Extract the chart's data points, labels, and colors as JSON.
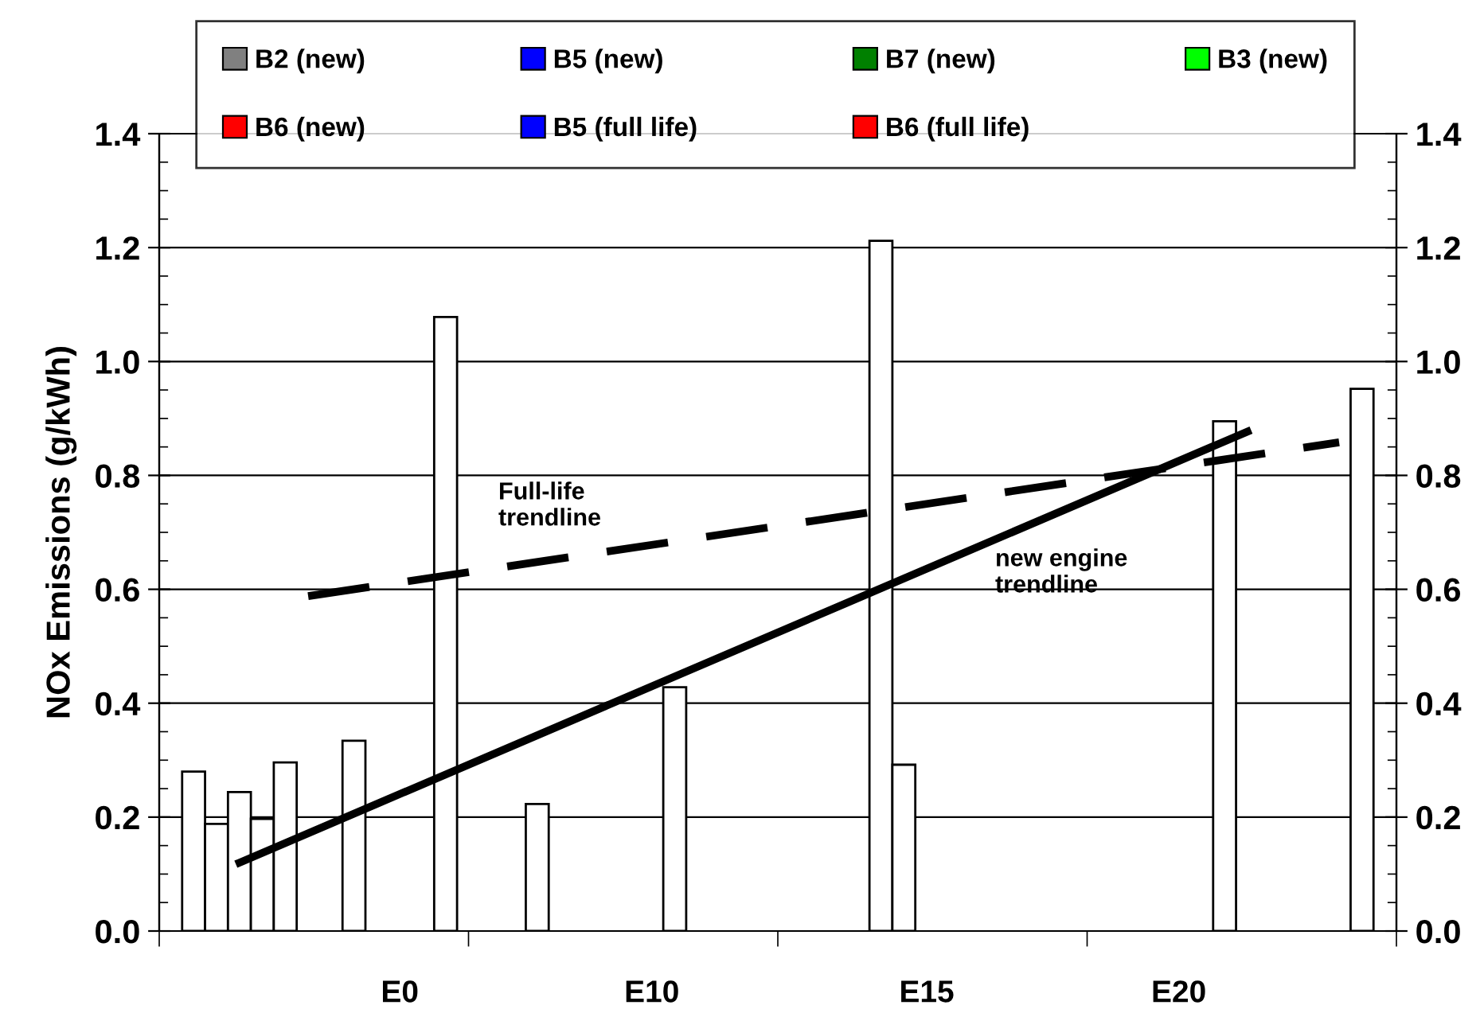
{
  "chart_data": {
    "type": "bar",
    "ylabel": "NOx Emissions (g/kWh)",
    "categories": [
      null,
      null,
      null,
      null,
      null,
      null,
      null,
      null,
      null,
      null,
      "E0",
      null,
      null,
      null,
      null,
      null,
      null,
      null,
      null,
      null,
      null,
      "E10",
      null,
      null,
      null,
      null,
      null,
      null,
      null,
      null,
      null,
      null,
      null,
      "E15",
      null,
      null,
      null,
      null,
      null,
      null,
      null,
      null,
      null,
      null,
      "E20",
      null,
      null,
      null,
      null,
      null,
      null,
      null,
      null,
      null
    ],
    "ylim": [
      0,
      1.4
    ],
    "yticks": [
      {
        "value": 0,
        "label": "0.0"
      },
      {
        "value": 0.2,
        "label": "0.2"
      },
      {
        "value": 0.4,
        "label": "0.4"
      },
      {
        "value": 0.6,
        "label": "0.6"
      },
      {
        "value": 0.8,
        "label": "0.8"
      },
      {
        "value": 1.0,
        "label": "1.0"
      },
      {
        "value": 1.2,
        "label": "1.2"
      },
      {
        "value": 1.4,
        "label": "1.4"
      }
    ],
    "y2lim": [
      0,
      1.4
    ],
    "y2ticks": [
      {
        "value": 0,
        "label": "0.0"
      },
      {
        "value": 0.2,
        "label": "0.2"
      },
      {
        "value": 0.4,
        "label": "0.4"
      },
      {
        "value": 0.6,
        "label": "0.6"
      },
      {
        "value": 0.8,
        "label": "0.8"
      },
      {
        "value": 1.0,
        "label": "1.0"
      },
      {
        "value": 1.2,
        "label": "1.2"
      },
      {
        "value": 1.4,
        "label": "1.4"
      }
    ],
    "grid": "y",
    "legend": "top",
    "series": [
      {
        "color": "#ffffff",
        "values": [
          null,
          0.28,
          0.188,
          0.244,
          0.197,
          0.296,
          null,
          null,
          0.334,
          null,
          null,
          null,
          1.078,
          null,
          null,
          null,
          0.223,
          null,
          null,
          null,
          null,
          null,
          0.428,
          null,
          null,
          null,
          null,
          null,
          null,
          null,
          null,
          1.212,
          0.292,
          null,
          null,
          null,
          null,
          null,
          null,
          null,
          null,
          null,
          null,
          null,
          null,
          null,
          0.895,
          null,
          null,
          null,
          null,
          null,
          0.952,
          null
        ]
      },
      {
        "type": "line",
        "color": "#000000",
        "line_style": "solid",
        "values": [
          null,
          null,
          null,
          0.12,
          null,
          null,
          null,
          null,
          null,
          null,
          null,
          null,
          null,
          null,
          null,
          null,
          null,
          null,
          null,
          null,
          null,
          null,
          null,
          null,
          null,
          null,
          null,
          null,
          null,
          null,
          null,
          null,
          null,
          null,
          null,
          null,
          null,
          null,
          null,
          null,
          null,
          null,
          null,
          null,
          null,
          null,
          null,
          0.877,
          null,
          null,
          null,
          null,
          null,
          null
        ]
      },
      {
        "type": "line",
        "color": "#000000",
        "line_style": "dashed",
        "values": [
          null,
          null,
          null,
          null,
          null,
          null,
          0.588,
          null,
          null,
          null,
          null,
          null,
          null,
          null,
          null,
          null,
          null,
          null,
          null,
          null,
          null,
          null,
          null,
          null,
          null,
          null,
          null,
          null,
          null,
          null,
          null,
          null,
          null,
          null,
          null,
          null,
          null,
          null,
          null,
          null,
          null,
          null,
          null,
          null,
          null,
          null,
          null,
          null,
          null,
          null,
          null,
          0.858,
          null,
          null
        ]
      },
      {
        "name": "B2 (new)",
        "color": "#808080",
        "values": [
          null,
          null,
          null,
          null,
          null,
          null,
          null,
          null,
          null,
          null,
          null,
          null,
          null,
          null,
          null,
          null,
          null,
          null,
          null,
          null,
          null,
          null,
          null,
          null,
          null,
          null,
          null,
          null,
          null,
          null,
          null,
          null,
          null,
          null,
          null,
          null,
          null,
          null,
          null,
          null,
          null,
          null,
          null,
          null,
          null,
          null,
          null,
          null,
          null,
          null,
          null,
          null,
          null,
          null
        ]
      },
      {
        "name": "B5 (new)",
        "color": "#0000ff",
        "values": [
          null,
          null,
          null,
          null,
          null,
          null,
          null,
          null,
          null,
          null,
          null,
          null,
          null,
          null,
          null,
          null,
          null,
          null,
          null,
          null,
          null,
          null,
          null,
          null,
          null,
          null,
          null,
          null,
          null,
          null,
          null,
          null,
          null,
          null,
          null,
          null,
          null,
          null,
          null,
          null,
          null,
          null,
          null,
          null,
          null,
          null,
          null,
          null,
          null,
          null,
          null,
          null,
          null,
          null
        ]
      },
      {
        "name": "B7 (new)",
        "color": "#008000",
        "values": [
          null,
          null,
          null,
          null,
          null,
          null,
          null,
          null,
          null,
          null,
          null,
          null,
          null,
          null,
          null,
          null,
          null,
          null,
          null,
          null,
          null,
          null,
          null,
          null,
          null,
          null,
          null,
          null,
          null,
          null,
          null,
          null,
          null,
          null,
          null,
          null,
          null,
          null,
          null,
          null,
          null,
          null,
          null,
          null,
          null,
          null,
          null,
          null,
          null,
          null,
          null,
          null,
          null,
          null
        ]
      },
      {
        "name": "B3 (new)",
        "color": "#00ff00",
        "values": [
          null,
          null,
          null,
          null,
          null,
          null,
          null,
          null,
          null,
          null,
          null,
          null,
          null,
          null,
          null,
          null,
          null,
          null,
          null,
          null,
          null,
          null,
          null,
          null,
          null,
          null,
          null,
          null,
          null,
          null,
          null,
          null,
          null,
          null,
          null,
          null,
          null,
          null,
          null,
          null,
          null,
          null,
          null,
          null,
          null,
          null,
          null,
          null,
          null,
          null,
          null,
          null,
          null,
          null
        ]
      },
      {
        "name": "B6 (new)",
        "color": "#ff0000",
        "values": [
          null,
          null,
          null,
          null,
          null,
          null,
          null,
          null,
          null,
          null,
          null,
          null,
          null,
          null,
          null,
          null,
          null,
          null,
          null,
          null,
          null,
          null,
          null,
          null,
          null,
          null,
          null,
          null,
          null,
          null,
          null,
          null,
          null,
          null,
          null,
          null,
          null,
          null,
          null,
          null,
          null,
          null,
          null,
          null,
          null,
          null,
          null,
          null,
          null,
          null,
          null,
          null,
          null,
          null
        ]
      },
      {
        "name": "B5 (full life)",
        "color": "#0000ff",
        "values": [
          null,
          null,
          null,
          null,
          null,
          null,
          null,
          null,
          null,
          null,
          null,
          null,
          null,
          null,
          null,
          null,
          null,
          null,
          null,
          null,
          null,
          null,
          null,
          null,
          null,
          null,
          null,
          null,
          null,
          null,
          null,
          null,
          null,
          null,
          null,
          null,
          null,
          null,
          null,
          null,
          null,
          null,
          null,
          null,
          null,
          null,
          null,
          null,
          null,
          null,
          null,
          null,
          null,
          null
        ]
      },
      {
        "name": "B6 (full life)",
        "color": "#ff0000",
        "values": [
          null,
          null,
          null,
          null,
          null,
          null,
          null,
          null,
          null,
          null,
          null,
          null,
          null,
          null,
          null,
          null,
          null,
          null,
          null,
          null,
          null,
          null,
          null,
          null,
          null,
          null,
          null,
          null,
          null,
          null,
          null,
          null,
          null,
          null,
          null,
          null,
          null,
          null,
          null,
          null,
          null,
          null,
          null,
          null,
          null,
          null,
          null,
          null,
          null,
          null,
          null,
          null,
          null,
          null
        ]
      }
    ],
    "annotations": [
      "Full-life\ntrendline",
      "new engine\ntrendline"
    ]
  }
}
